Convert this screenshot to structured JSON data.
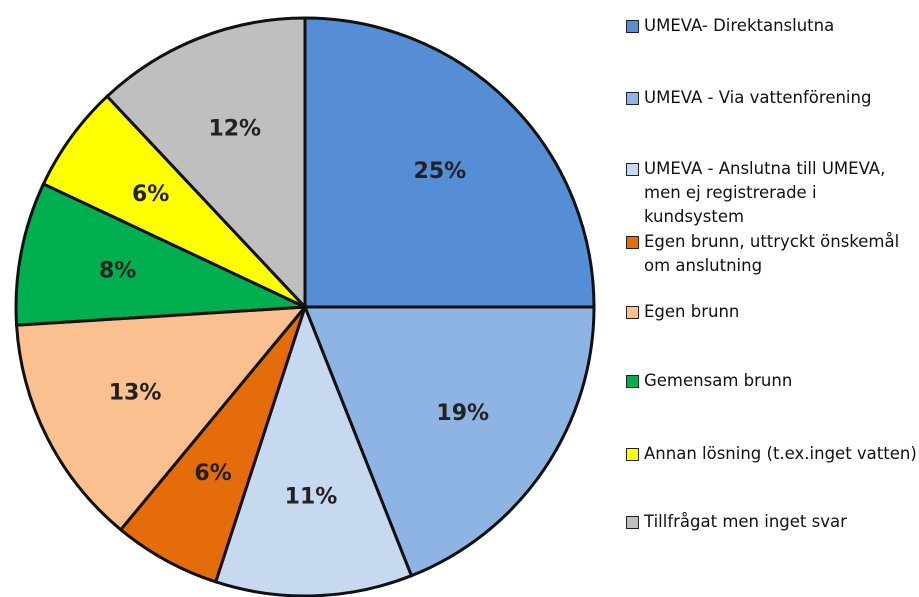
{
  "chart_data": {
    "type": "pie",
    "categories": [
      "UMEVA-  Direktanslutna",
      "UMEVA - Via vattenförening",
      "UMEVA - Anslutna till UMEVA, men ej registrerade i kundsystem",
      "Egen brunn, uttryckt önskemål om anslutning",
      "Egen brunn",
      "Gemensam brunn",
      "Annan lösning (t.ex.inget vatten)",
      "Tillfrågat men inget svar"
    ],
    "values": [
      25,
      19,
      11,
      6,
      13,
      8,
      6,
      12
    ],
    "value_labels": [
      "25%",
      "19%",
      "11%",
      "6%",
      "13%",
      "8%",
      "6%",
      "12%"
    ],
    "colors": [
      "#558ed5",
      "#8eb4e3",
      "#c6d9f1",
      "#e46c0a",
      "#fac090",
      "#00b050",
      "#ffff00",
      "#bfbfbf"
    ],
    "legend": "right"
  }
}
